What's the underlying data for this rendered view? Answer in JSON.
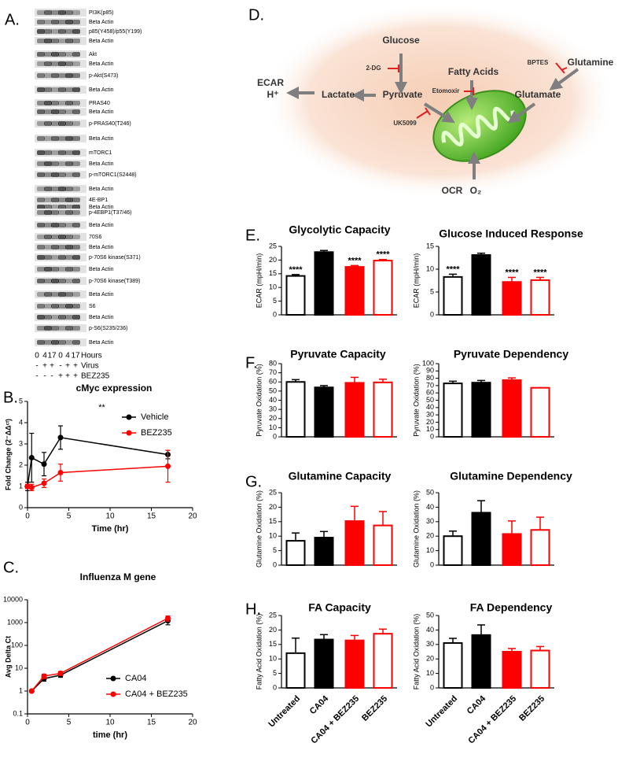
{
  "panel_labels": [
    "A.",
    "B.",
    "C.",
    "D.",
    "E.",
    "F.",
    "G.",
    "H."
  ],
  "blot": {
    "bands": [
      "PI3K(p85)",
      "Beta Actin",
      "p85(Y458)/p55(Y199)",
      "Beta Actin",
      "Akt",
      "Beta Actin",
      "p-Akt(S473)",
      "Beta Actin",
      "PRAS40",
      "Beta Actin",
      "p-PRAS40(T246)",
      "Beta Actin",
      "mTORC1",
      "Beta Actin",
      "p-mTORC1(S2448)",
      "Beta Actin",
      "4E-BP1",
      "Beta Actin",
      "p-4EBP1(T37/46)",
      "Beta Actin",
      "70S6",
      "Beta Actin",
      "p-70S6 kinase(S371)",
      "Beta Actin",
      "p-70S6 kinase(T389)",
      "Beta Actin",
      "S6",
      "Beta Actin",
      "p-S6(S235/236)",
      "Beta Actin"
    ],
    "rows": [
      {
        "cells": [
          "0",
          "4",
          "17",
          "0",
          "4",
          "17"
        ],
        "label": "Hours"
      },
      {
        "cells": [
          "-",
          "+",
          "+",
          "-",
          "+",
          "+"
        ],
        "label": "Virus"
      },
      {
        "cells": [
          "-",
          "-",
          "-",
          "+",
          "+",
          "+"
        ],
        "label": "BEZ235"
      }
    ]
  },
  "diagram": {
    "labels": {
      "glucose": "Glucose",
      "dg": "2-DG",
      "fatty_acids": "Fatty Acids",
      "bptes": "BPTES",
      "glutamine": "Glutamine",
      "etomoxir": "Etomoxir",
      "ecar": "ECAR",
      "h": "H⁺",
      "lactate": "Lactate",
      "pyruvate": "Pyruvate",
      "glutamate": "Glutamate",
      "uk5099": "UK5099",
      "ocr": "OCR",
      "o2": "O₂"
    }
  },
  "chart_data": [
    {
      "type": "line",
      "title": "cMyc expression",
      "xlabel": "Time (hr)",
      "ylabel": "Fold Change (2⁻ΔΔᶜᵗ)",
      "annotation": "**",
      "x": [
        0,
        0.5,
        2,
        4,
        17
      ],
      "xlim": [
        0,
        20
      ],
      "xticks": [
        0,
        5,
        10,
        15,
        20
      ],
      "ylim": [
        0,
        5
      ],
      "yticks": [
        0,
        1,
        2,
        3,
        4,
        5
      ],
      "log_y": false,
      "legend": "upper right",
      "series": [
        {
          "name": "Vehicle",
          "color": "#000000",
          "values": [
            1,
            2.35,
            2.05,
            3.3,
            2.5
          ],
          "errors": [
            0.2,
            1.15,
            0.55,
            0.55,
            0.2
          ]
        },
        {
          "name": "BEZ235",
          "color": "#ff0000",
          "values": [
            1,
            0.95,
            1.15,
            1.65,
            1.95
          ],
          "errors": [
            0.1,
            0.15,
            0.2,
            0.4,
            0.75
          ]
        }
      ]
    },
    {
      "type": "line",
      "title": "Influenza M gene",
      "xlabel": "time (hr)",
      "ylabel": "Avg Delta Ct",
      "x": [
        0.5,
        2,
        4,
        17
      ],
      "xlim": [
        0,
        20
      ],
      "xticks": [
        0,
        5,
        10,
        15,
        20
      ],
      "ylim": [
        0.1,
        10000
      ],
      "yticks": [
        0.1,
        1,
        10,
        100,
        1000,
        10000
      ],
      "log_y": true,
      "legend": "lower right",
      "series": [
        {
          "name": "CA04",
          "color": "#000000",
          "values": [
            1,
            3.5,
            5,
            1200
          ],
          "errors": [
            0.1,
            0.8,
            1,
            400
          ]
        },
        {
          "name": "CA04 + BEZ235",
          "color": "#ff0000",
          "values": [
            1,
            4.5,
            6,
            1550
          ],
          "errors": [
            0.1,
            1,
            1.2,
            400
          ]
        }
      ]
    },
    {
      "type": "bar",
      "title": "Glycolytic Capacity",
      "ylabel": "ECAR (mpH/min)",
      "ylim": [
        0,
        25
      ],
      "yticks": [
        0,
        5,
        10,
        15,
        20,
        25
      ],
      "values": [
        14.2,
        22.9,
        17.5,
        19.8
      ],
      "errors": [
        0.5,
        0.6,
        0.5,
        0.4
      ],
      "significance": [
        "****",
        null,
        "****",
        "****"
      ],
      "fills": [
        "#ffffff",
        "#000000",
        "#ff0000",
        "#ffffff"
      ],
      "strokes": [
        "#000000",
        "#000000",
        "#ff0000",
        "#ff0000"
      ]
    },
    {
      "type": "bar",
      "title": "Glucose Induced Response",
      "ylabel": "ECAR (mpH/min)",
      "ylim": [
        0,
        15
      ],
      "yticks": [
        0,
        5,
        10,
        15
      ],
      "values": [
        8.3,
        13.1,
        7.2,
        7.6
      ],
      "errors": [
        0.6,
        0.4,
        1.0,
        0.6
      ],
      "significance": [
        "****",
        null,
        "****",
        "****"
      ],
      "fills": [
        "#ffffff",
        "#000000",
        "#ff0000",
        "#ffffff"
      ],
      "strokes": [
        "#000000",
        "#000000",
        "#ff0000",
        "#ff0000"
      ]
    },
    {
      "type": "bar",
      "title": "Pyruvate Capacity",
      "ylabel": "Pyruvate Oxidation (%)",
      "ylim": [
        0,
        80
      ],
      "yticks": [
        0,
        10,
        20,
        30,
        40,
        50,
        60,
        70,
        80
      ],
      "values": [
        60,
        54,
        59,
        59.5
      ],
      "errors": [
        2.5,
        2,
        6,
        3.5
      ],
      "fills": [
        "#ffffff",
        "#000000",
        "#ff0000",
        "#ffffff"
      ],
      "strokes": [
        "#000000",
        "#000000",
        "#ff0000",
        "#ff0000"
      ]
    },
    {
      "type": "bar",
      "title": "Pyruvate Dependency",
      "ylabel": "Pyruvate Oxidation (%)",
      "ylim": [
        0,
        100
      ],
      "yticks": [
        0,
        10,
        20,
        30,
        40,
        50,
        60,
        70,
        80,
        90,
        100
      ],
      "values": [
        73,
        74,
        77.5,
        67
      ],
      "errors": [
        3,
        3,
        3,
        0
      ],
      "fills": [
        "#ffffff",
        "#000000",
        "#ff0000",
        "#ffffff"
      ],
      "strokes": [
        "#000000",
        "#000000",
        "#ff0000",
        "#ff0000"
      ]
    },
    {
      "type": "bar",
      "title": "Glutamine Capacity",
      "ylabel": "Glutamine Oxidation (%)",
      "ylim": [
        0,
        25
      ],
      "yticks": [
        0,
        5,
        10,
        15,
        20,
        25
      ],
      "values": [
        8.4,
        9.5,
        15.2,
        13.7
      ],
      "errors": [
        2.7,
        2.1,
        5.1,
        4.8
      ],
      "fills": [
        "#ffffff",
        "#000000",
        "#ff0000",
        "#ffffff"
      ],
      "strokes": [
        "#000000",
        "#000000",
        "#ff0000",
        "#ff0000"
      ]
    },
    {
      "type": "bar",
      "title": "Glutamine Dependency",
      "ylabel": "Glutamine Oxidation (%)",
      "ylim": [
        0,
        50
      ],
      "yticks": [
        0,
        10,
        20,
        30,
        40,
        50
      ],
      "values": [
        20,
        36.2,
        21.5,
        24.3
      ],
      "errors": [
        3.5,
        8.3,
        9,
        8.8
      ],
      "fills": [
        "#ffffff",
        "#000000",
        "#ff0000",
        "#ffffff"
      ],
      "strokes": [
        "#000000",
        "#000000",
        "#ff0000",
        "#ff0000"
      ]
    },
    {
      "type": "bar",
      "title": "FA Capacity",
      "ylabel": "Fatty Acid Oxidation (%)",
      "ylim": [
        0,
        25
      ],
      "yticks": [
        0,
        5,
        10,
        15,
        20,
        25
      ],
      "values": [
        12,
        16.7,
        16.4,
        18.7
      ],
      "errors": [
        5.2,
        1.7,
        1.7,
        1.6
      ],
      "categories": [
        "Untreated",
        "CA04",
        "CA04 + BEZ235",
        "BEZ235"
      ],
      "fills": [
        "#ffffff",
        "#000000",
        "#ff0000",
        "#ffffff"
      ],
      "strokes": [
        "#000000",
        "#000000",
        "#ff0000",
        "#ff0000"
      ]
    },
    {
      "type": "bar",
      "title": "FA Dependency",
      "ylabel": "Fatty Acid Oxidation (%)",
      "ylim": [
        0,
        50
      ],
      "yticks": [
        0,
        10,
        20,
        30,
        40,
        50
      ],
      "values": [
        31,
        36.5,
        25,
        25.8
      ],
      "errors": [
        3.2,
        7,
        2.2,
        2.8
      ],
      "categories": [
        "Untreated",
        "CA04",
        "CA04 + BEZ235",
        "BEZ235"
      ],
      "fills": [
        "#ffffff",
        "#000000",
        "#ff0000",
        "#ffffff"
      ],
      "strokes": [
        "#000000",
        "#000000",
        "#ff0000",
        "#ff0000"
      ]
    }
  ]
}
